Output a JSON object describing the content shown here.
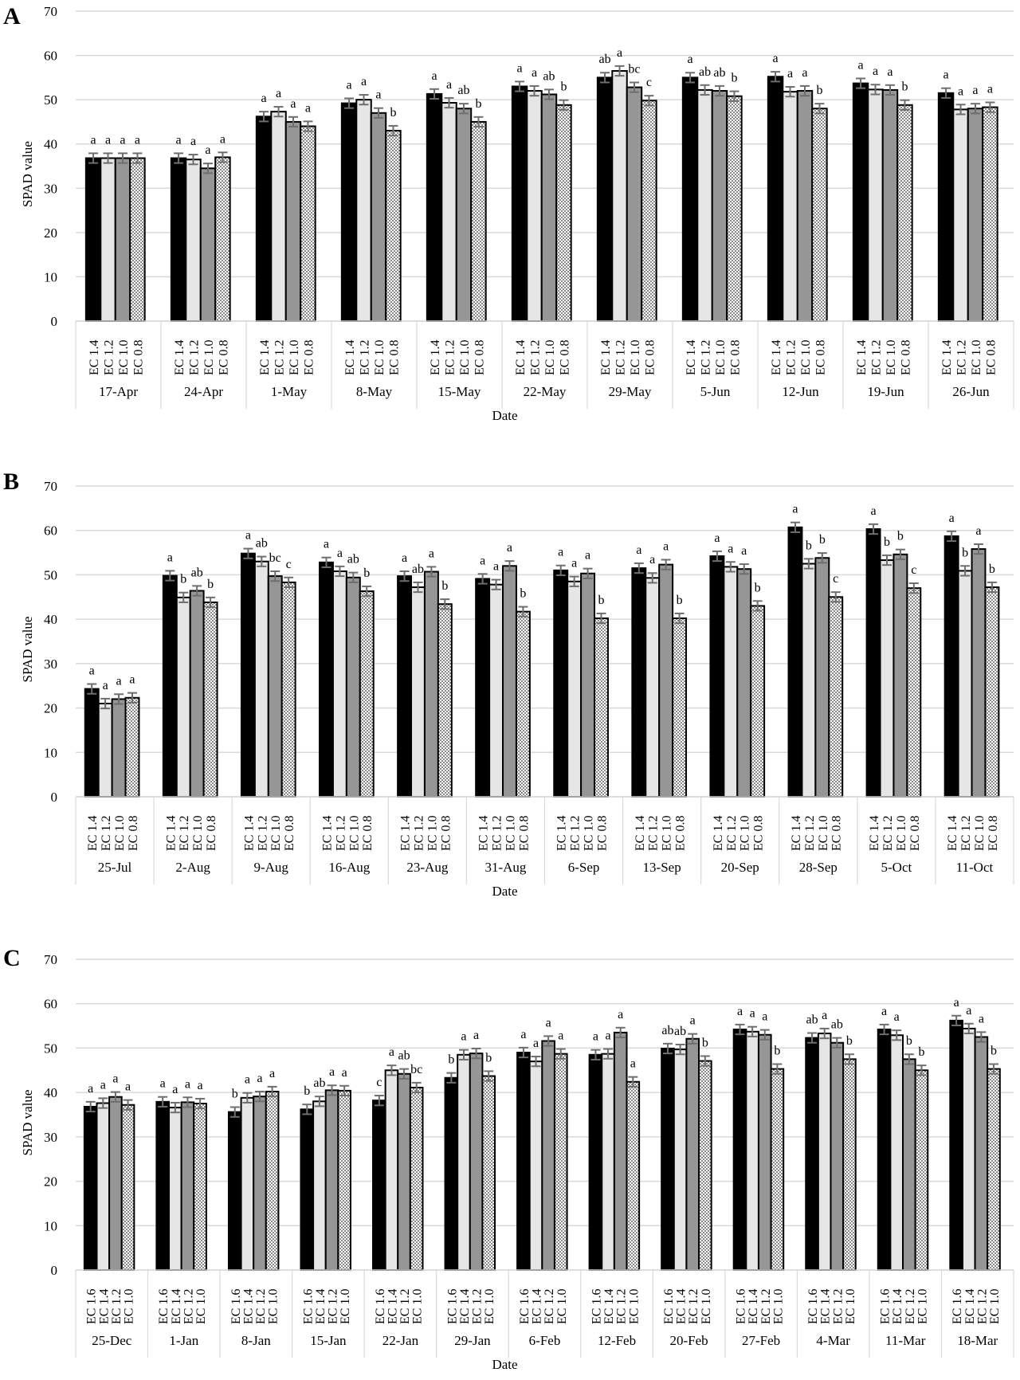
{
  "figure": {
    "panels": [
      "A",
      "B",
      "C"
    ],
    "ylabel": "SPAD value",
    "xlabel": "Date",
    "y_ticks": [
      0,
      10,
      20,
      30,
      40,
      50,
      60,
      70
    ]
  },
  "colors": {
    "series1": "#000000",
    "series2": "#e6e6e6",
    "series3": "#969696",
    "series4_pattern": "#d6d6d6",
    "gridline": "#d9d9d9",
    "error_bar": "#6e6e6e"
  },
  "chart_data": [
    {
      "panel": "A",
      "type": "bar",
      "title": "",
      "xlabel": "Date",
      "ylabel": "SPAD value",
      "ylim": [
        0,
        70
      ],
      "grid": true,
      "legend_position": "none (treatment labels under each bar group)",
      "categories": [
        "17-Apr",
        "24-Apr",
        "1-May",
        "8-May",
        "15-May",
        "22-May",
        "29-May",
        "5-Jun",
        "12-Jun",
        "19-Jun",
        "26-Jun"
      ],
      "series": [
        {
          "name": "EC 1.4",
          "values": [
            36.8,
            36.8,
            46.2,
            49.2,
            51.3,
            53.0,
            55.0,
            55.0,
            55.2,
            53.7,
            51.5
          ],
          "letters": [
            "a",
            "a",
            "a",
            "a",
            "a",
            "a",
            "ab",
            "a",
            "a",
            "a",
            "a"
          ]
        },
        {
          "name": "EC 1.2",
          "values": [
            36.8,
            36.5,
            47.3,
            50.0,
            49.3,
            52.0,
            56.5,
            52.2,
            51.8,
            52.3,
            47.8
          ],
          "letters": [
            "a",
            "a",
            "a",
            "a",
            "a",
            "a",
            "a",
            "ab",
            "a",
            "a",
            "a"
          ]
        },
        {
          "name": "EC 1.0",
          "values": [
            36.8,
            34.5,
            45.0,
            47.0,
            48.0,
            51.2,
            52.8,
            52.0,
            52.0,
            52.2,
            48.0
          ],
          "letters": [
            "a",
            "a",
            "a",
            "a",
            "ab",
            "ab",
            "bc",
            "ab",
            "a",
            "a",
            "a"
          ]
        },
        {
          "name": "EC 0.8",
          "values": [
            36.8,
            37.0,
            44.0,
            43.0,
            45.0,
            48.8,
            49.8,
            50.8,
            48.0,
            48.8,
            48.3
          ],
          "letters": [
            "a",
            "a",
            "a",
            "b",
            "b",
            "b",
            "c",
            "b",
            "b",
            "b",
            "a"
          ]
        }
      ]
    },
    {
      "panel": "B",
      "type": "bar",
      "title": "",
      "xlabel": "Date",
      "ylabel": "SPAD value",
      "ylim": [
        0,
        70
      ],
      "grid": true,
      "legend_position": "none (treatment labels under each bar group)",
      "categories": [
        "25-Jul",
        "2-Aug",
        "9-Aug",
        "16-Aug",
        "23-Aug",
        "31-Aug",
        "6-Sep",
        "13-Sep",
        "20-Sep",
        "28-Sep",
        "5-Oct",
        "11-Oct"
      ],
      "series": [
        {
          "name": "EC 1.4",
          "values": [
            24.3,
            49.8,
            54.8,
            52.8,
            49.7,
            49.1,
            51.0,
            51.5,
            54.2,
            60.7,
            60.3,
            58.7
          ],
          "letters": [
            "a",
            "a",
            "a",
            "a",
            "a",
            "a",
            "a",
            "a",
            "a",
            "a",
            "a",
            "a"
          ]
        },
        {
          "name": "EC 1.2",
          "values": [
            21.0,
            44.9,
            53.0,
            50.8,
            47.2,
            47.8,
            48.5,
            49.3,
            51.8,
            52.5,
            53.3,
            50.9
          ],
          "letters": [
            "a",
            "b",
            "ab",
            "a",
            "ab",
            "a",
            "a",
            "a",
            "a",
            "b",
            "b",
            "b"
          ]
        },
        {
          "name": "EC 1.0",
          "values": [
            22.0,
            46.4,
            49.7,
            49.4,
            50.7,
            52.0,
            50.3,
            52.3,
            51.3,
            53.8,
            54.6,
            55.8
          ],
          "letters": [
            "a",
            "ab",
            "bc",
            "ab",
            "a",
            "a",
            "a",
            "a",
            "a",
            "b",
            "b",
            "a"
          ]
        },
        {
          "name": "EC 0.8",
          "values": [
            22.3,
            43.8,
            48.3,
            46.3,
            43.4,
            41.7,
            40.2,
            40.2,
            43.0,
            45.0,
            47.0,
            47.2
          ],
          "letters": [
            "a",
            "b",
            "c",
            "b",
            "b",
            "b",
            "b",
            "b",
            "b",
            "c",
            "c",
            "b"
          ]
        }
      ]
    },
    {
      "panel": "C",
      "type": "bar",
      "title": "",
      "xlabel": "Date",
      "ylabel": "SPAD value",
      "ylim": [
        0,
        70
      ],
      "grid": true,
      "legend_position": "none (treatment labels under each bar group)",
      "categories": [
        "25-Dec",
        "1-Jan",
        "8-Jan",
        "15-Jan",
        "22-Jan",
        "29-Jan",
        "6-Feb",
        "12-Feb",
        "20-Feb",
        "27-Feb",
        "4-Mar",
        "11-Mar",
        "18-Mar"
      ],
      "series": [
        {
          "name": "EC 1.6",
          "values": [
            36.8,
            37.9,
            35.6,
            36.2,
            38.2,
            43.3,
            49.0,
            48.5,
            49.9,
            54.2,
            52.3,
            54.2,
            56.2
          ],
          "letters": [
            "a",
            "a",
            "b",
            "b",
            "c",
            "b",
            "a",
            "a",
            "ab",
            "a",
            "ab",
            "a",
            "a"
          ]
        },
        {
          "name": "EC 1.4",
          "values": [
            37.6,
            36.6,
            38.8,
            38.0,
            45.0,
            48.5,
            47.0,
            48.7,
            49.7,
            53.7,
            53.3,
            52.9,
            54.4
          ],
          "letters": [
            "a",
            "a",
            "a",
            "ab",
            "a",
            "a",
            "a",
            "a",
            "ab",
            "a",
            "a",
            "a",
            "a"
          ]
        },
        {
          "name": "EC 1.2",
          "values": [
            39.0,
            37.8,
            39.1,
            40.5,
            44.2,
            48.8,
            51.6,
            53.5,
            52.1,
            53.0,
            51.2,
            47.5,
            52.5
          ],
          "letters": [
            "a",
            "a",
            "a",
            "a",
            "ab",
            "a",
            "a",
            "a",
            "a",
            "a",
            "ab",
            "b",
            "a"
          ]
        },
        {
          "name": "EC 1.0",
          "values": [
            37.2,
            37.5,
            40.2,
            40.4,
            41.1,
            43.7,
            48.7,
            42.4,
            47.1,
            45.3,
            47.5,
            45.0,
            45.3
          ],
          "letters": [
            "a",
            "a",
            "a",
            "a",
            "bc",
            "b",
            "a",
            "a",
            "b",
            "b",
            "b",
            "b",
            "b"
          ]
        }
      ]
    }
  ]
}
